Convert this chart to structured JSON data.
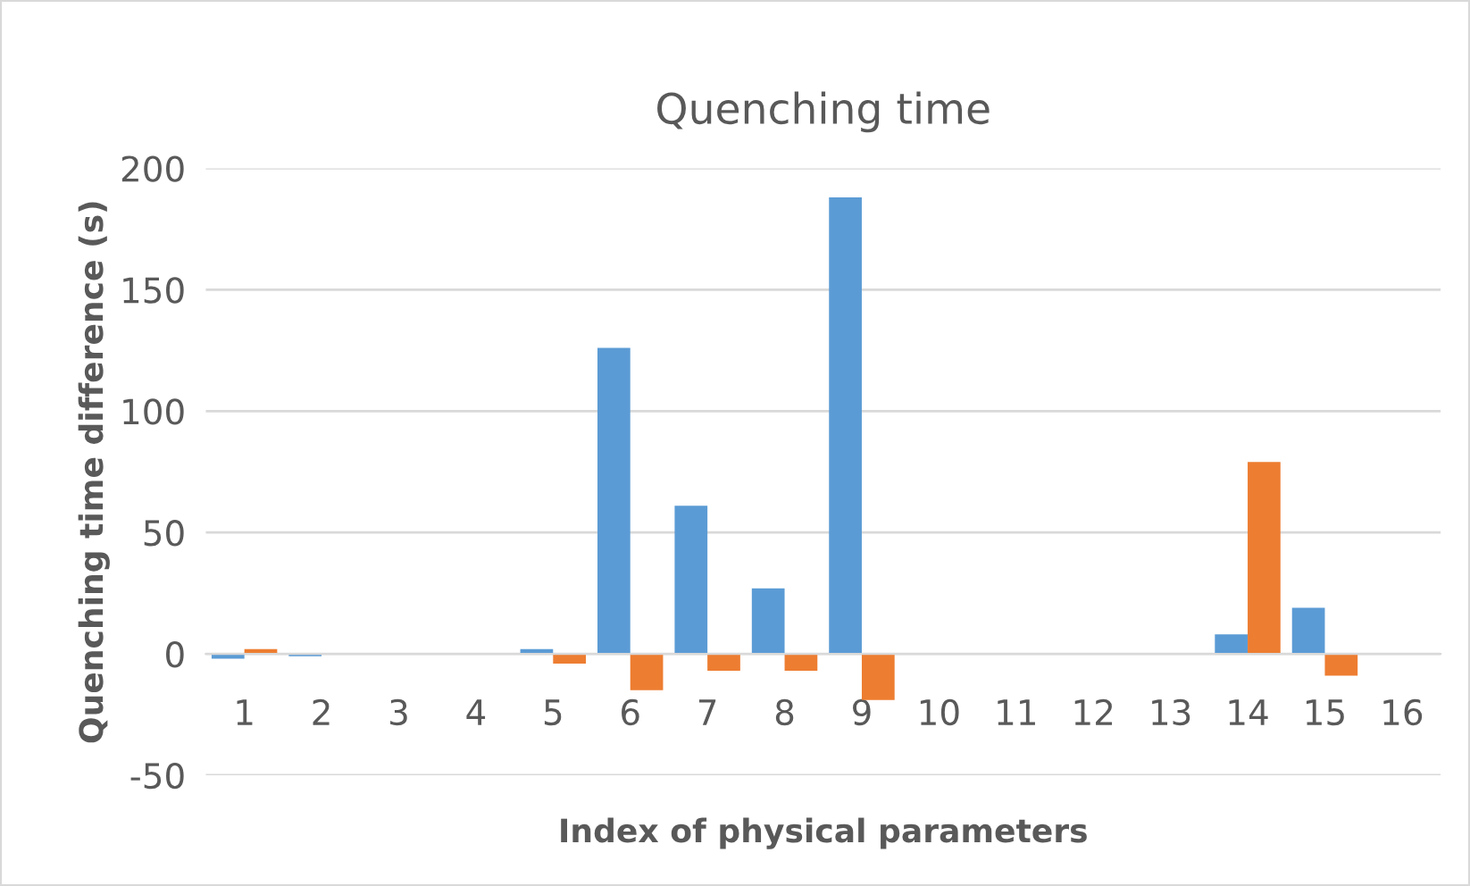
{
  "chart_data": {
    "type": "bar",
    "title": "Quenching time",
    "xlabel": "Index of physical parameters",
    "ylabel": "Quenching time difference (s)",
    "categories": [
      "1",
      "2",
      "3",
      "4",
      "5",
      "6",
      "7",
      "8",
      "9",
      "10",
      "11",
      "12",
      "13",
      "14",
      "15",
      "16"
    ],
    "series": [
      {
        "color": "#5b9bd5",
        "values": [
          -2,
          -1,
          0,
          0,
          2,
          126,
          61,
          27,
          188,
          0,
          0,
          0,
          0,
          8,
          19,
          0
        ]
      },
      {
        "color": "#ed7d31",
        "values": [
          2,
          0,
          0,
          0,
          -4,
          -15,
          -7,
          -7,
          -19,
          0,
          0,
          0,
          0,
          79,
          -9,
          0
        ]
      }
    ],
    "ylim": [
      -50,
      200
    ],
    "yticks": [
      -50,
      0,
      50,
      100,
      150,
      200
    ],
    "grid": "y",
    "legend": false
  }
}
